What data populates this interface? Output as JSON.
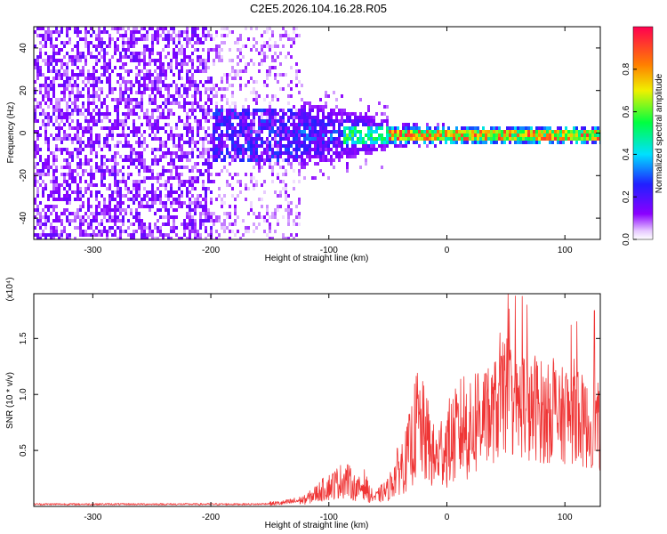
{
  "title": "C2E5.2026.104.16.28.R05",
  "chart_data": [
    {
      "type": "heatmap",
      "name": "spectrogram",
      "xlabel": "Height of straight line (km)",
      "ylabel": "Frequency (Hz)",
      "xlim": [
        -350,
        130
      ],
      "ylim": [
        -50,
        50
      ],
      "xticks": [
        -300,
        -200,
        -100,
        0,
        100
      ],
      "xtick_labels": [
        "-300",
        "-200",
        "-100",
        "0",
        "100"
      ],
      "yticks": [
        -40,
        -20,
        0,
        20,
        40
      ],
      "ytick_labels": [
        "-40",
        "-20",
        "0",
        "20",
        "40"
      ],
      "colorbar": {
        "label": "Normalized spectral amplitude",
        "range": [
          0,
          1
        ],
        "ticks": [
          0.0,
          0.2,
          0.4,
          0.6,
          0.8
        ],
        "tick_labels": [
          "0.0",
          "0.2",
          "0.4",
          "0.6",
          "0.8"
        ],
        "colors": [
          "#ffffff",
          "#8a00ff",
          "#2020ff",
          "#00e0ff",
          "#00ff40",
          "#f0f000",
          "#ff8000",
          "#ff0050"
        ]
      },
      "description_regions": [
        {
          "x_range": [
            -350,
            -200
          ],
          "freq_range": [
            -50,
            50
          ],
          "amplitude": 0.08
        },
        {
          "x_range": [
            -200,
            -130
          ],
          "freq_range": [
            -50,
            50
          ],
          "amplitude": 0.05
        },
        {
          "x_range": [
            -200,
            -50
          ],
          "freq_range": [
            -15,
            15
          ],
          "amplitude": 0.25
        },
        {
          "x_range": [
            -50,
            130
          ],
          "freq_range": [
            -3,
            3
          ],
          "amplitude": 0.6
        }
      ]
    },
    {
      "type": "line",
      "name": "snr",
      "xlabel": "Height of straight line (km)",
      "ylabel": "SNR (10 * v/v)",
      "y_multiplier": "(x10⁴)",
      "xlim": [
        -350,
        130
      ],
      "ylim": [
        0,
        1.9
      ],
      "xticks": [
        -300,
        -200,
        -100,
        0,
        100
      ],
      "xtick_labels": [
        "-300",
        "-200",
        "-100",
        "0",
        "100"
      ],
      "yticks": [
        0.5,
        1.0,
        1.5
      ],
      "ytick_labels": [
        "0.5",
        "1.0",
        "1.5"
      ],
      "color": "#ef3535",
      "series": [
        {
          "name": "SNR",
          "x": [
            -350,
            -300,
            -250,
            -200,
            -160,
            -140,
            -120,
            -105,
            -95,
            -85,
            -80,
            -75,
            -70,
            -65,
            -60,
            -55,
            -50,
            -45,
            -40,
            -35,
            -30,
            -25,
            -20,
            -15,
            -10,
            -5,
            0,
            5,
            10,
            15,
            20,
            25,
            30,
            35,
            40,
            45,
            50,
            55,
            60,
            65,
            70,
            75,
            80,
            85,
            90,
            95,
            100,
            105,
            110,
            115,
            120,
            125,
            130
          ],
          "y": [
            0.02,
            0.02,
            0.02,
            0.02,
            0.02,
            0.03,
            0.06,
            0.15,
            0.2,
            0.25,
            0.18,
            0.15,
            0.2,
            0.1,
            0.08,
            0.12,
            0.15,
            0.25,
            0.35,
            0.4,
            0.55,
            0.75,
            0.65,
            0.55,
            0.4,
            0.5,
            0.55,
            0.6,
            0.65,
            0.75,
            0.65,
            0.8,
            0.85,
            0.75,
            0.85,
            0.9,
            1.0,
            0.95,
            0.85,
            0.95,
            0.8,
            0.9,
            0.85,
            0.8,
            0.95,
            0.75,
            0.85,
            0.8,
            0.9,
            0.75,
            0.7,
            0.8,
            0.65
          ]
        }
      ],
      "peaks": [
        {
          "x": 58,
          "y": 1.88
        },
        {
          "x": 68,
          "y": 1.8
        },
        {
          "x": 125,
          "y": 1.75
        },
        {
          "x": 45,
          "y": 1.55
        },
        {
          "x": 110,
          "y": 1.65
        }
      ]
    }
  ]
}
